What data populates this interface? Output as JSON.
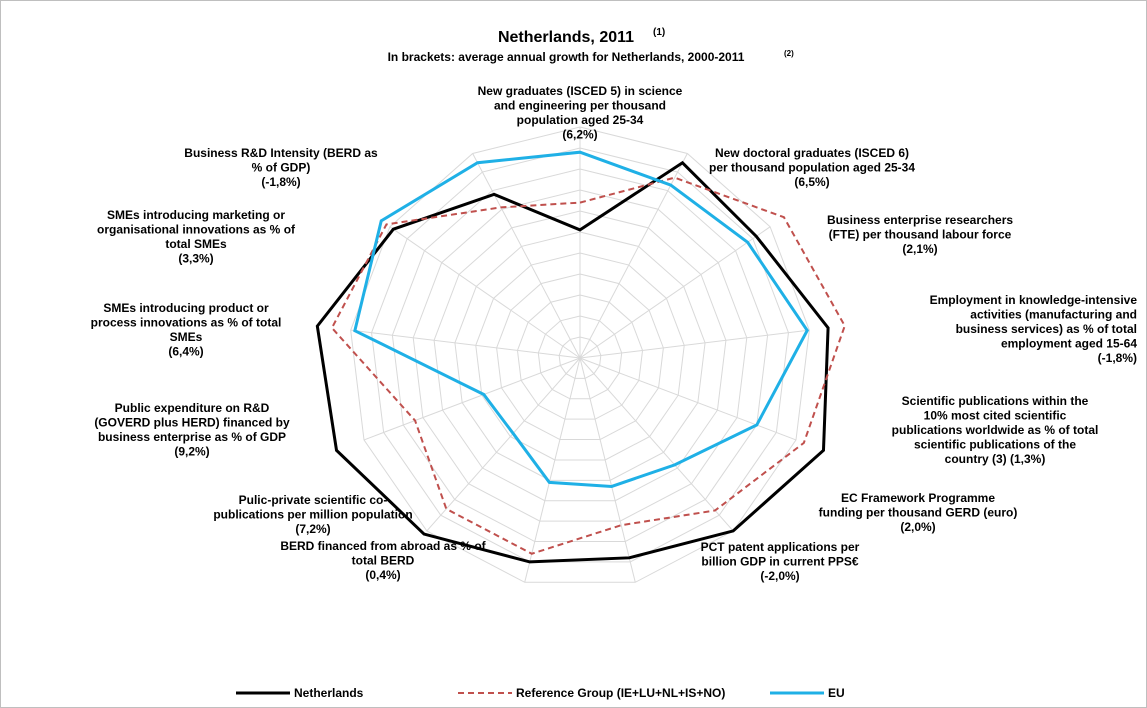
{
  "chart_data": {
    "type": "radar",
    "title": "Netherlands, 2011",
    "title_note": "(1)",
    "subtitle": "In brackets: average annual growth for Netherlands, 2000-2011",
    "subtitle_note": "(2)",
    "categories": [
      "New graduates (ISCED 5) in science\nand engineering per thousand\npopulation aged 25-34\n(6,2%)",
      "New doctoral graduates (ISCED 6)\nper thousand population aged 25-34\n(6,5%)",
      "Business enterprise researchers\n(FTE) per thousand labour force\n(2,1%)",
      "Employment in knowledge-intensive\nactivities (manufacturing and\nbusiness services) as % of total\nemployment aged 15-64\n(-1,8%)",
      "Scientific publications within the\n10% most cited scientific\npublications worldwide as % of total\nscientific publications of the\ncountry (3) (1,3%)",
      "EC Framework Programme\nfunding per thousand GERD (euro)\n(2,0%)",
      "PCT patent applications per\nbillion GDP in current PPS€\n(-2,0%)",
      "BERD financed from abroad as % of\ntotal BERD\n(0,4%)",
      "Pulic-private scientific co-\npublications per million population\n(7,2%)",
      "Public expenditure on R&D\n(GOVERD plus HERD) financed by\nbusiness enterprise as % of GDP\n(9,2%)",
      "SMEs introducing product or\nprocess innovations as % of total\nSMEs\n(6,4%)",
      "SMEs introducing marketing or\norganisational innovations as % of\ntotal SMEs\n(3,3%)",
      "Business R&D Intensity (BERD as\n% of GDP)\n(-1,8%)"
    ],
    "series": [
      {
        "name": "Netherlands",
        "color": "#000000",
        "dash": false,
        "values": [
          0.61,
          1.05,
          1.02,
          1.19,
          1.24,
          1.1,
          0.98,
          1.0,
          1.12,
          1.24,
          1.26,
          1.08,
          0.88
        ]
      },
      {
        "name": "Reference Group (IE+LU+NL+IS+NO)",
        "color": "#c0504d",
        "dash": true,
        "values": [
          0.74,
          0.97,
          1.18,
          1.27,
          1.14,
          0.97,
          0.82,
          0.96,
          0.96,
          0.84,
          1.19,
          1.12,
          0.81
        ]
      },
      {
        "name": "EU",
        "color": "#1fb0e6",
        "dash": false,
        "values": [
          0.98,
          0.93,
          0.97,
          1.09,
          0.9,
          0.68,
          0.63,
          0.61,
          0.48,
          0.49,
          1.08,
          1.15,
          1.05
        ]
      }
    ],
    "ylim": [
      0,
      1.3
    ],
    "yticks": [
      0.1,
      0.2,
      0.3,
      0.4,
      0.5,
      0.6,
      0.7,
      0.8,
      0.9,
      1.0,
      1.1
    ],
    "grid": true,
    "legend": "bottom"
  }
}
